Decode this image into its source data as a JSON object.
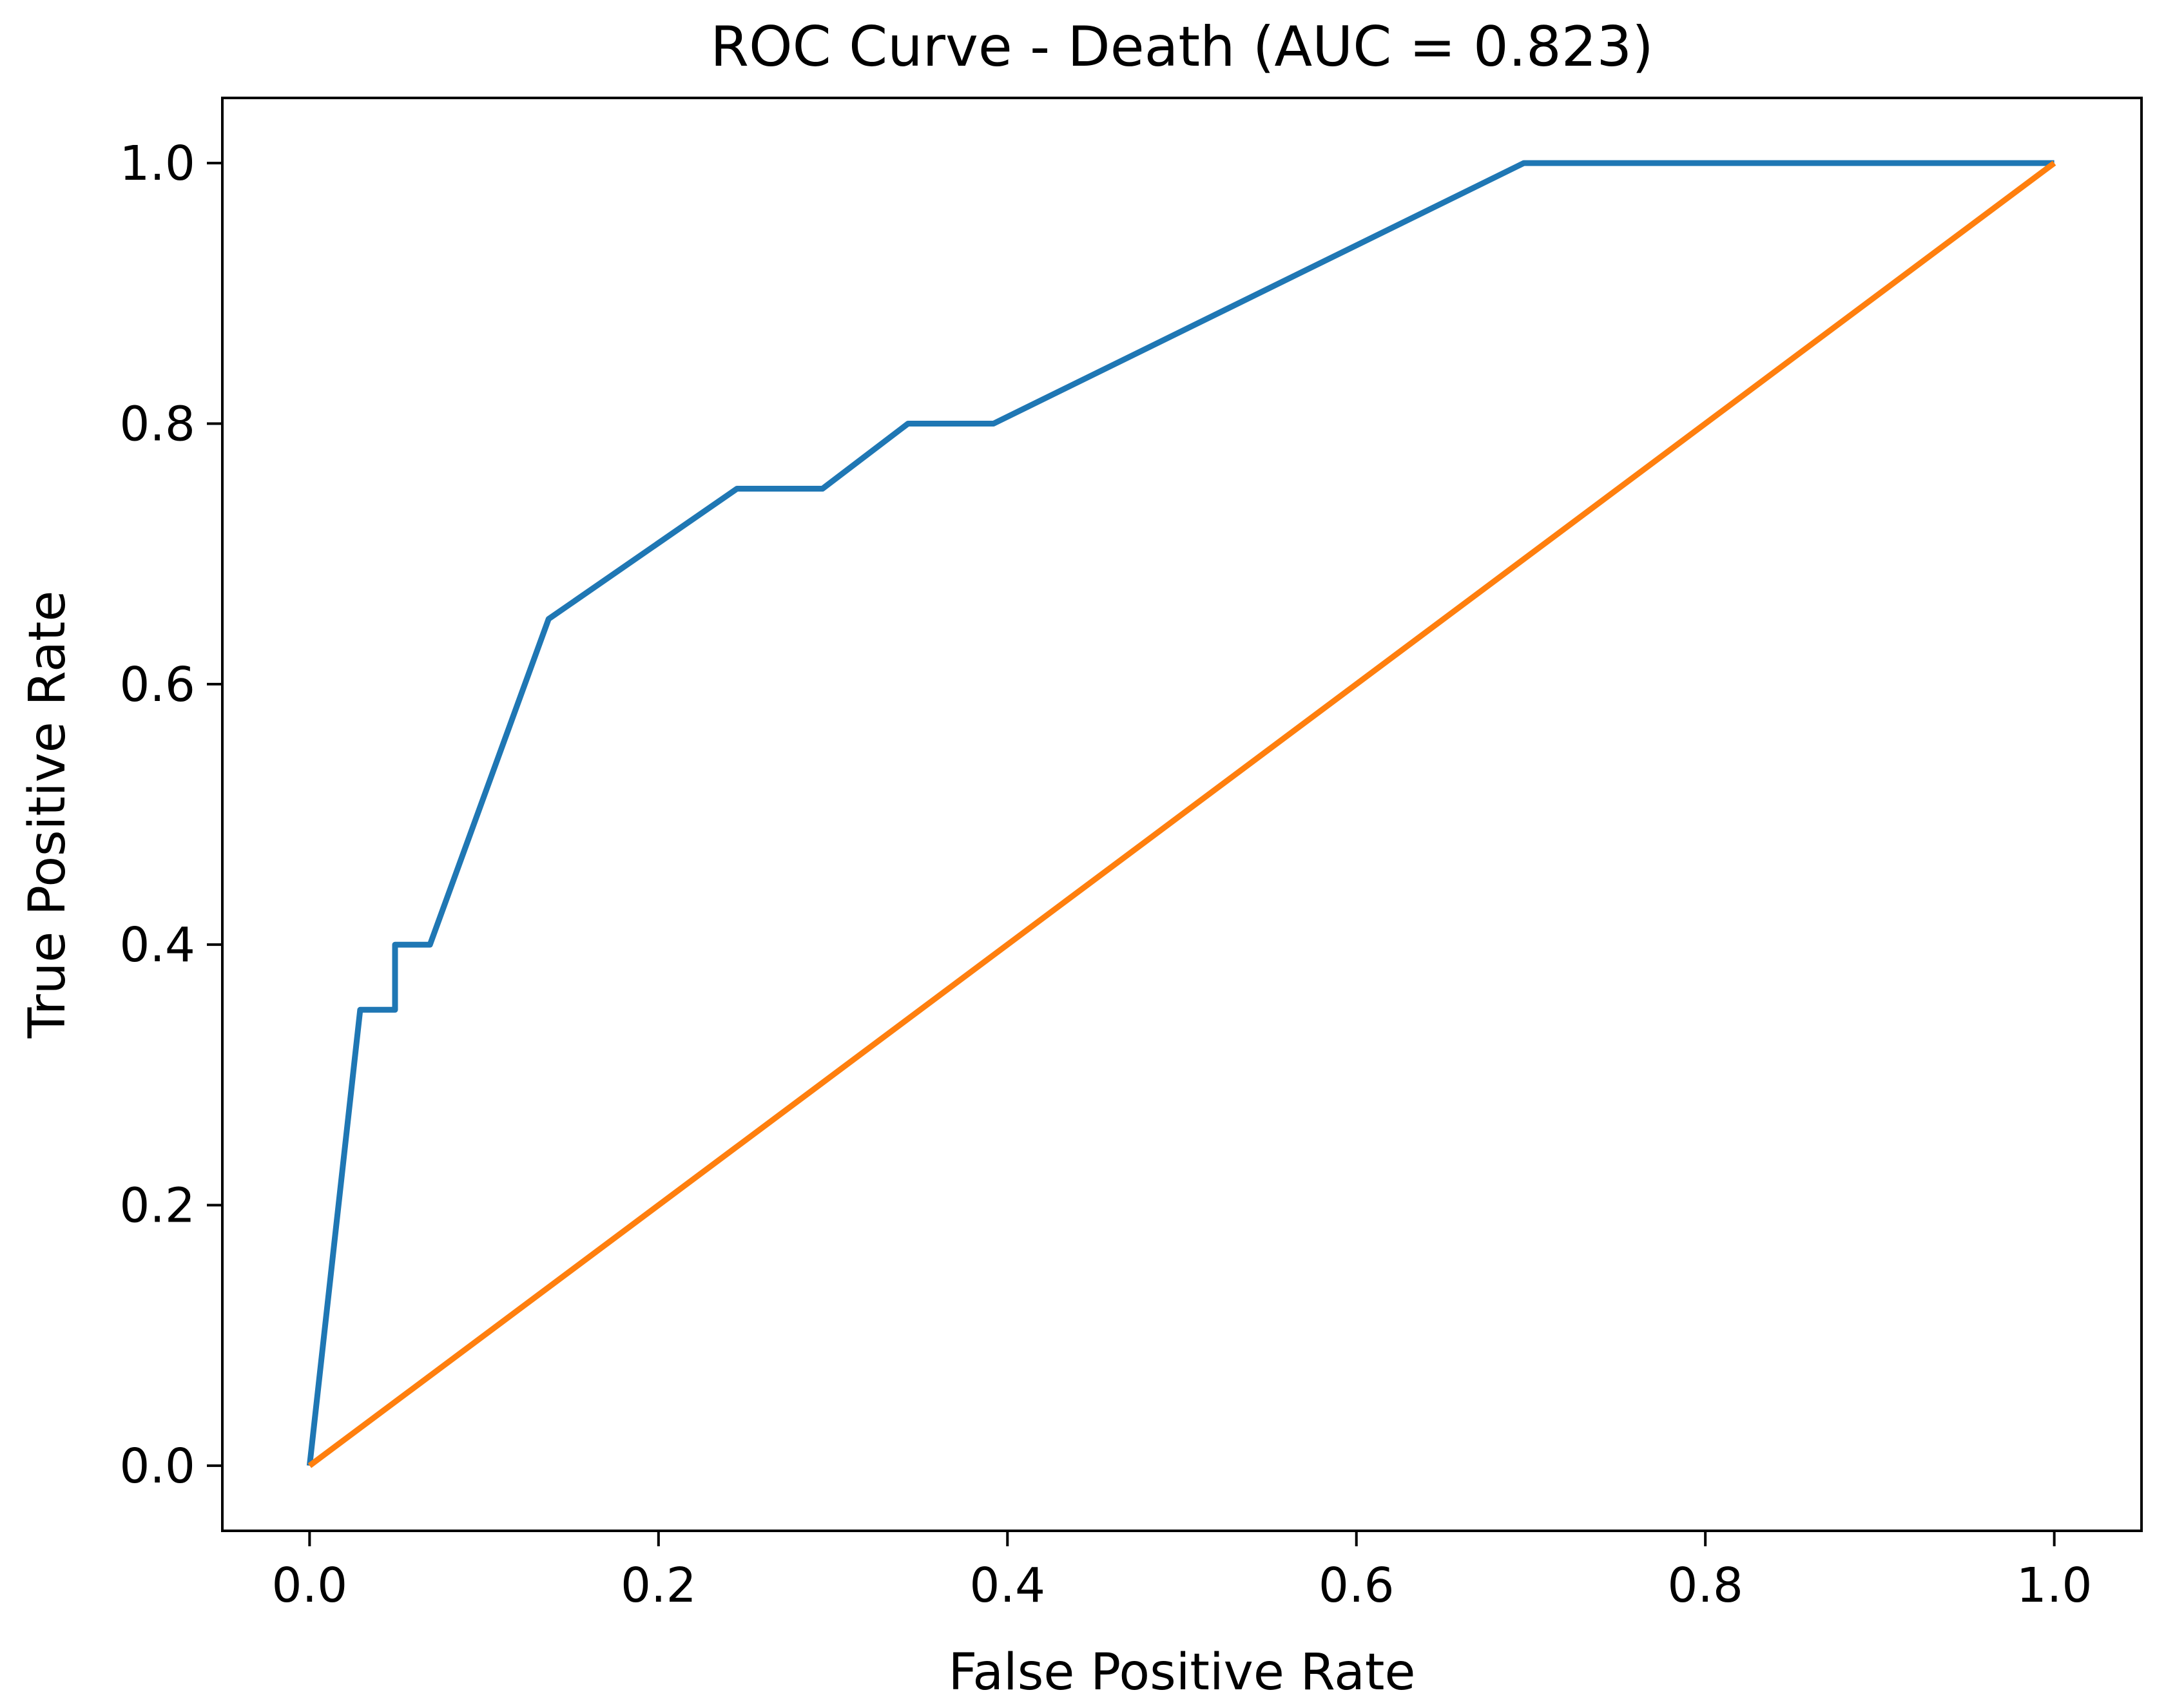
{
  "chart_data": {
    "type": "line",
    "title": "ROC Curve - Death (AUC = 0.823)",
    "xlabel": "False Positive Rate",
    "ylabel": "True Positive Rate",
    "xlim": [
      -0.05,
      1.05
    ],
    "ylim": [
      -0.05,
      1.05
    ],
    "xticks": [
      "0.0",
      "0.2",
      "0.4",
      "0.6",
      "0.8",
      "1.0"
    ],
    "yticks": [
      "0.0",
      "0.2",
      "0.4",
      "0.6",
      "0.8",
      "1.0"
    ],
    "grid": false,
    "series": [
      {
        "color": "#1f77b4",
        "x": [
          0.0,
          0.029,
          0.049,
          0.049,
          0.069,
          0.137,
          0.245,
          0.294,
          0.343,
          0.392,
          0.696,
          1.0
        ],
        "y": [
          0.0,
          0.35,
          0.35,
          0.4,
          0.4,
          0.65,
          0.75,
          0.75,
          0.8,
          0.8,
          1.0,
          1.0
        ]
      },
      {
        "color": "#ff7f0e",
        "x": [
          0.0,
          1.0
        ],
        "y": [
          0.0,
          1.0
        ]
      }
    ]
  }
}
